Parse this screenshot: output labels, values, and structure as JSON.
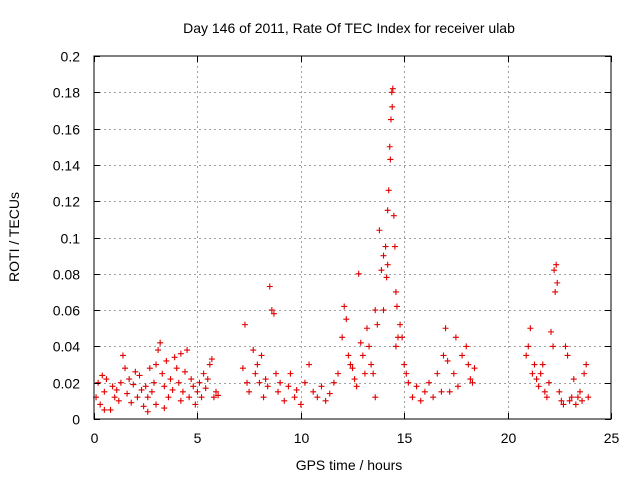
{
  "colors": {
    "series": "#e00000",
    "grid": "#a0a0a0",
    "axis": "#000000",
    "background": "#ffffff"
  },
  "chart_data": {
    "type": "scatter",
    "title": "Day 146 of 2011, Rate Of TEC Index for receiver ulab",
    "xlabel": "GPS time / hours",
    "ylabel": "ROTI / TECUs",
    "xlim": [
      0,
      25
    ],
    "ylim": [
      0,
      0.2
    ],
    "xticks": [
      0,
      5,
      10,
      15,
      20,
      25
    ],
    "xtick_labels": [
      "0",
      "5",
      "10",
      "15",
      "20",
      "25"
    ],
    "yticks": [
      0,
      0.02,
      0.04,
      0.06,
      0.08,
      0.1,
      0.12,
      0.14,
      0.16,
      0.18,
      0.2
    ],
    "ytick_labels": [
      "0",
      "0.02",
      "0.04",
      "0.06",
      "0.08",
      "0.1",
      "0.12",
      "0.14",
      "0.16",
      "0.18",
      "0.2"
    ],
    "grid": true,
    "marker": "plus",
    "series": [
      {
        "name": "ROTI",
        "points": [
          [
            0.1,
            0.012
          ],
          [
            0.2,
            0.02
          ],
          [
            0.3,
            0.008
          ],
          [
            0.4,
            0.024
          ],
          [
            0.5,
            0.015
          ],
          [
            0.6,
            0.022
          ],
          [
            0.8,
            0.005
          ],
          [
            0.9,
            0.018
          ],
          [
            1.0,
            0.012
          ],
          [
            1.1,
            0.016
          ],
          [
            1.2,
            0.01
          ],
          [
            1.3,
            0.02
          ],
          [
            1.4,
            0.035
          ],
          [
            1.5,
            0.028
          ],
          [
            1.6,
            0.014
          ],
          [
            1.7,
            0.022
          ],
          [
            1.8,
            0.009
          ],
          [
            1.9,
            0.019
          ],
          [
            2.0,
            0.026
          ],
          [
            2.1,
            0.012
          ],
          [
            2.2,
            0.024
          ],
          [
            2.3,
            0.016
          ],
          [
            2.4,
            0.007
          ],
          [
            2.5,
            0.018
          ],
          [
            2.6,
            0.012
          ],
          [
            2.7,
            0.028
          ],
          [
            2.8,
            0.015
          ],
          [
            2.9,
            0.02
          ],
          [
            3.0,
            0.03
          ],
          [
            3.1,
            0.038
          ],
          [
            3.2,
            0.042
          ],
          [
            3.3,
            0.025
          ],
          [
            3.4,
            0.018
          ],
          [
            3.5,
            0.032
          ],
          [
            3.6,
            0.012
          ],
          [
            3.7,
            0.022
          ],
          [
            3.8,
            0.016
          ],
          [
            3.9,
            0.034
          ],
          [
            4.0,
            0.028
          ],
          [
            4.1,
            0.02
          ],
          [
            4.2,
            0.036
          ],
          [
            4.3,
            0.015
          ],
          [
            4.4,
            0.026
          ],
          [
            4.5,
            0.038
          ],
          [
            4.6,
            0.012
          ],
          [
            4.7,
            0.022
          ],
          [
            4.8,
            0.018
          ],
          [
            4.9,
            0.008
          ],
          [
            5.0,
            0.015
          ],
          [
            5.1,
            0.02
          ],
          [
            5.2,
            0.012
          ],
          [
            5.3,
            0.025
          ],
          [
            5.4,
            0.017
          ],
          [
            5.5,
            0.022
          ],
          [
            5.6,
            0.03
          ],
          [
            5.7,
            0.033
          ],
          [
            5.8,
            0.012
          ],
          [
            5.9,
            0.015
          ],
          [
            6.0,
            0.013
          ],
          [
            3.0,
            0.008
          ],
          [
            3.4,
            0.006
          ],
          [
            4.2,
            0.01
          ],
          [
            2.6,
            0.004
          ],
          [
            0.5,
            0.005
          ],
          [
            7.2,
            0.028
          ],
          [
            7.3,
            0.052
          ],
          [
            7.4,
            0.02
          ],
          [
            7.5,
            0.015
          ],
          [
            7.7,
            0.038
          ],
          [
            7.8,
            0.025
          ],
          [
            7.9,
            0.03
          ],
          [
            8.0,
            0.02
          ],
          [
            8.1,
            0.035
          ],
          [
            8.2,
            0.012
          ],
          [
            8.3,
            0.022
          ],
          [
            8.4,
            0.018
          ],
          [
            8.5,
            0.073
          ],
          [
            8.6,
            0.06
          ],
          [
            8.7,
            0.058
          ],
          [
            8.8,
            0.025
          ],
          [
            8.9,
            0.015
          ],
          [
            9.0,
            0.02
          ],
          [
            9.2,
            0.01
          ],
          [
            9.4,
            0.018
          ],
          [
            9.5,
            0.025
          ],
          [
            9.7,
            0.012
          ],
          [
            9.8,
            0.016
          ],
          [
            10.0,
            0.008
          ],
          [
            10.2,
            0.02
          ],
          [
            10.4,
            0.03
          ],
          [
            10.6,
            0.015
          ],
          [
            10.8,
            0.012
          ],
          [
            11.0,
            0.018
          ],
          [
            11.2,
            0.01
          ],
          [
            11.4,
            0.014
          ],
          [
            11.6,
            0.02
          ],
          [
            11.8,
            0.025
          ],
          [
            12.0,
            0.045
          ],
          [
            12.1,
            0.062
          ],
          [
            12.2,
            0.055
          ],
          [
            12.3,
            0.035
          ],
          [
            12.4,
            0.03
          ],
          [
            12.5,
            0.028
          ],
          [
            12.6,
            0.022
          ],
          [
            12.7,
            0.018
          ],
          [
            12.8,
            0.08
          ],
          [
            12.9,
            0.042
          ],
          [
            13.0,
            0.035
          ],
          [
            13.1,
            0.025
          ],
          [
            13.2,
            0.05
          ],
          [
            13.3,
            0.04
          ],
          [
            13.4,
            0.03
          ],
          [
            13.5,
            0.025
          ],
          [
            13.6,
            0.06
          ],
          [
            13.7,
            0.052
          ],
          [
            13.8,
            0.104
          ],
          [
            13.9,
            0.082
          ],
          [
            14.0,
            0.09
          ],
          [
            14.1,
            0.095
          ],
          [
            14.15,
            0.078
          ],
          [
            14.2,
            0.115
          ],
          [
            14.25,
            0.126
          ],
          [
            14.3,
            0.15
          ],
          [
            14.33,
            0.143
          ],
          [
            14.36,
            0.165
          ],
          [
            14.4,
            0.18
          ],
          [
            14.42,
            0.172
          ],
          [
            14.45,
            0.182
          ],
          [
            14.5,
            0.112
          ],
          [
            14.55,
            0.095
          ],
          [
            14.6,
            0.07
          ],
          [
            14.65,
            0.062
          ],
          [
            14.7,
            0.045
          ],
          [
            14.8,
            0.052
          ],
          [
            14.9,
            0.045
          ],
          [
            15.0,
            0.03
          ],
          [
            15.1,
            0.025
          ],
          [
            15.2,
            0.02
          ],
          [
            15.4,
            0.012
          ],
          [
            15.6,
            0.018
          ],
          [
            15.8,
            0.01
          ],
          [
            16.0,
            0.015
          ],
          [
            16.2,
            0.02
          ],
          [
            16.4,
            0.012
          ],
          [
            16.6,
            0.025
          ],
          [
            16.8,
            0.015
          ],
          [
            16.9,
            0.035
          ],
          [
            17.0,
            0.05
          ],
          [
            17.1,
            0.032
          ],
          [
            17.2,
            0.015
          ],
          [
            17.4,
            0.025
          ],
          [
            17.5,
            0.045
          ],
          [
            17.6,
            0.018
          ],
          [
            17.8,
            0.035
          ],
          [
            18.0,
            0.04
          ],
          [
            18.1,
            0.03
          ],
          [
            18.2,
            0.022
          ],
          [
            18.3,
            0.02
          ],
          [
            18.4,
            0.028
          ],
          [
            13.6,
            0.012
          ],
          [
            14.0,
            0.06
          ],
          [
            14.2,
            0.085
          ],
          [
            14.6,
            0.04
          ],
          [
            20.9,
            0.035
          ],
          [
            21.0,
            0.04
          ],
          [
            21.1,
            0.05
          ],
          [
            21.2,
            0.025
          ],
          [
            21.3,
            0.03
          ],
          [
            21.4,
            0.022
          ],
          [
            21.5,
            0.018
          ],
          [
            21.6,
            0.025
          ],
          [
            21.7,
            0.03
          ],
          [
            21.8,
            0.015
          ],
          [
            21.9,
            0.012
          ],
          [
            22.0,
            0.02
          ],
          [
            22.1,
            0.048
          ],
          [
            22.2,
            0.04
          ],
          [
            22.25,
            0.082
          ],
          [
            22.3,
            0.07
          ],
          [
            22.35,
            0.085
          ],
          [
            22.4,
            0.075
          ],
          [
            22.5,
            0.015
          ],
          [
            22.6,
            0.01
          ],
          [
            22.7,
            0.008
          ],
          [
            22.8,
            0.04
          ],
          [
            22.9,
            0.035
          ],
          [
            23.0,
            0.01
          ],
          [
            23.1,
            0.012
          ],
          [
            23.2,
            0.022
          ],
          [
            23.3,
            0.008
          ],
          [
            23.4,
            0.012
          ],
          [
            23.5,
            0.015
          ],
          [
            23.6,
            0.01
          ],
          [
            23.7,
            0.025
          ],
          [
            23.8,
            0.03
          ],
          [
            23.9,
            0.012
          ]
        ]
      }
    ]
  }
}
